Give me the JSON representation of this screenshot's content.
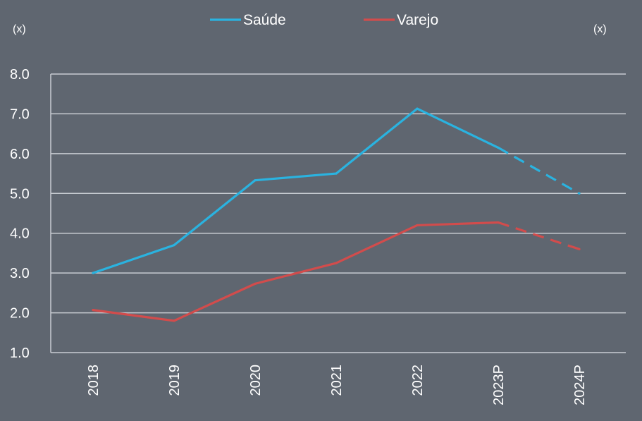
{
  "chart_data": {
    "type": "line",
    "categories": [
      "2018",
      "2019",
      "2020",
      "2021",
      "2022",
      "2023P",
      "2024P"
    ],
    "series": [
      {
        "name": "Saúde",
        "values": [
          3.0,
          3.7,
          5.33,
          5.5,
          7.13,
          6.15,
          5.0
        ],
        "color": "#2ab3e0",
        "dashed_from_index": 5
      },
      {
        "name": "Varejo",
        "values": [
          2.07,
          1.8,
          2.73,
          3.25,
          4.2,
          4.27,
          3.6
        ],
        "color": "#d24c4c",
        "dashed_from_index": 5
      }
    ],
    "y_ticks": [
      "1.0",
      "2.0",
      "3.0",
      "4.0",
      "5.0",
      "6.0",
      "7.0",
      "8.0"
    ],
    "ylim": [
      1.0,
      8.0
    ],
    "unit_left": "(x)",
    "unit_right": "(x)",
    "grid": true,
    "legend_position": "top-center"
  },
  "colors": {
    "background": "#5f6670",
    "grid": "#c8ccd2",
    "text": "#ffffff"
  }
}
